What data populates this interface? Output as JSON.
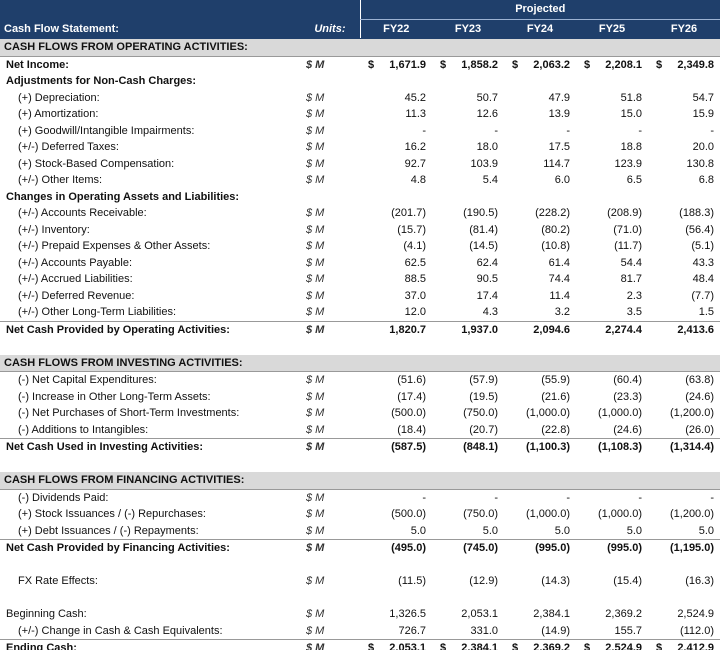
{
  "header": {
    "title": "Cash Flow Statement:",
    "units_label": "Units:",
    "group_label": "Projected",
    "years": [
      "FY22",
      "FY23",
      "FY24",
      "FY25",
      "FY26"
    ]
  },
  "rows": [
    {
      "type": "section",
      "label": "CASH FLOWS FROM OPERATING ACTIVITIES:"
    },
    {
      "type": "bold",
      "label": "Net Income:",
      "units": "$ M",
      "dollar": "$",
      "values": [
        "1,671.9",
        "1,858.2",
        "2,063.2",
        "2,208.1",
        "2,349.8"
      ]
    },
    {
      "type": "subhead",
      "label": "Adjustments for Non-Cash Charges:"
    },
    {
      "type": "item",
      "label": "(+) Depreciation:",
      "units": "$ M",
      "values": [
        "45.2",
        "50.7",
        "47.9",
        "51.8",
        "54.7"
      ]
    },
    {
      "type": "item",
      "label": "(+) Amortization:",
      "units": "$ M",
      "values": [
        "11.3",
        "12.6",
        "13.9",
        "15.0",
        "15.9"
      ]
    },
    {
      "type": "item",
      "label": "(+) Goodwill/Intangible Impairments:",
      "units": "$ M",
      "values": [
        "-",
        "-",
        "-",
        "-",
        "-"
      ]
    },
    {
      "type": "item",
      "label": "(+/-) Deferred Taxes:",
      "units": "$ M",
      "values": [
        "16.2",
        "18.0",
        "17.5",
        "18.8",
        "20.0"
      ]
    },
    {
      "type": "item",
      "label": "(+) Stock-Based Compensation:",
      "units": "$ M",
      "values": [
        "92.7",
        "103.9",
        "114.7",
        "123.9",
        "130.8"
      ]
    },
    {
      "type": "item",
      "label": "(+/-) Other Items:",
      "units": "$ M",
      "values": [
        "4.8",
        "5.4",
        "6.0",
        "6.5",
        "6.8"
      ]
    },
    {
      "type": "subhead",
      "label": "Changes in Operating Assets and Liabilities:"
    },
    {
      "type": "item",
      "label": "(+/-) Accounts Receivable:",
      "units": "$ M",
      "values": [
        "(201.7)",
        "(190.5)",
        "(228.2)",
        "(208.9)",
        "(188.3)"
      ]
    },
    {
      "type": "item",
      "label": "(+/-) Inventory:",
      "units": "$ M",
      "values": [
        "(15.7)",
        "(81.4)",
        "(80.2)",
        "(71.0)",
        "(56.4)"
      ]
    },
    {
      "type": "item",
      "label": "(+/-) Prepaid Expenses & Other Assets:",
      "units": "$ M",
      "values": [
        "(4.1)",
        "(14.5)",
        "(10.8)",
        "(11.7)",
        "(5.1)"
      ]
    },
    {
      "type": "item",
      "label": "(+/-) Accounts Payable:",
      "units": "$ M",
      "values": [
        "62.5",
        "62.4",
        "61.4",
        "54.4",
        "43.3"
      ]
    },
    {
      "type": "item",
      "label": "(+/-) Accrued Liabilities:",
      "units": "$ M",
      "values": [
        "88.5",
        "90.5",
        "74.4",
        "81.7",
        "48.4"
      ]
    },
    {
      "type": "item",
      "label": "(+/-) Deferred Revenue:",
      "units": "$ M",
      "values": [
        "37.0",
        "17.4",
        "11.4",
        "2.3",
        "(7.7)"
      ]
    },
    {
      "type": "item",
      "label": "(+/-) Other Long-Term Liabilities:",
      "units": "$ M",
      "values": [
        "12.0",
        "4.3",
        "3.2",
        "3.5",
        "1.5"
      ]
    },
    {
      "type": "total",
      "label": "Net Cash Provided by Operating Activities:",
      "units": "$ M",
      "values": [
        "1,820.7",
        "1,937.0",
        "2,094.6",
        "2,274.4",
        "2,413.6"
      ]
    },
    {
      "type": "blank"
    },
    {
      "type": "section",
      "label": "CASH FLOWS FROM INVESTING ACTIVITIES:"
    },
    {
      "type": "item",
      "label": "(-) Net Capital Expenditures:",
      "units": "$ M",
      "values": [
        "(51.6)",
        "(57.9)",
        "(55.9)",
        "(60.4)",
        "(63.8)"
      ]
    },
    {
      "type": "item",
      "label": "(-) Increase in Other Long-Term Assets:",
      "units": "$ M",
      "values": [
        "(17.4)",
        "(19.5)",
        "(21.6)",
        "(23.3)",
        "(24.6)"
      ]
    },
    {
      "type": "item",
      "label": "(-) Net Purchases of Short-Term Investments:",
      "units": "$ M",
      "values": [
        "(500.0)",
        "(750.0)",
        "(1,000.0)",
        "(1,000.0)",
        "(1,200.0)"
      ]
    },
    {
      "type": "item",
      "label": "(-) Additions to Intangibles:",
      "units": "$ M",
      "values": [
        "(18.4)",
        "(20.7)",
        "(22.8)",
        "(24.6)",
        "(26.0)"
      ]
    },
    {
      "type": "total",
      "label": "Net Cash Used in Investing Activities:",
      "units": "$ M",
      "values": [
        "(587.5)",
        "(848.1)",
        "(1,100.3)",
        "(1,108.3)",
        "(1,314.4)"
      ]
    },
    {
      "type": "blank"
    },
    {
      "type": "section",
      "label": "CASH FLOWS FROM FINANCING ACTIVITIES:"
    },
    {
      "type": "item",
      "label": "(-) Dividends Paid:",
      "units": "$ M",
      "values": [
        "-",
        "-",
        "-",
        "-",
        "-"
      ]
    },
    {
      "type": "item",
      "label": "(+) Stock Issuances / (-) Repurchases:",
      "units": "$ M",
      "values": [
        "(500.0)",
        "(750.0)",
        "(1,000.0)",
        "(1,000.0)",
        "(1,200.0)"
      ]
    },
    {
      "type": "item",
      "label": "(+) Debt Issuances / (-) Repayments:",
      "units": "$ M",
      "values": [
        "5.0",
        "5.0",
        "5.0",
        "5.0",
        "5.0"
      ]
    },
    {
      "type": "total",
      "label": "Net Cash Provided by Financing Activities:",
      "units": "$ M",
      "values": [
        "(495.0)",
        "(745.0)",
        "(995.0)",
        "(995.0)",
        "(1,195.0)"
      ]
    },
    {
      "type": "blank"
    },
    {
      "type": "item",
      "label": "FX Rate Effects:",
      "units": "$ M",
      "values": [
        "(11.5)",
        "(12.9)",
        "(14.3)",
        "(15.4)",
        "(16.3)"
      ]
    },
    {
      "type": "blank"
    },
    {
      "type": "plain",
      "label": "Beginning Cash:",
      "units": "$ M",
      "values": [
        "1,326.5",
        "2,053.1",
        "2,384.1",
        "2,369.2",
        "2,524.9"
      ]
    },
    {
      "type": "item",
      "label": "(+/-) Change in Cash & Cash Equivalents:",
      "units": "$ M",
      "values": [
        "726.7",
        "331.0",
        "(14.9)",
        "155.7",
        "(112.0)"
      ]
    },
    {
      "type": "total",
      "label": "Ending Cash:",
      "units": "$ M",
      "dollar": "$",
      "values": [
        "2,053.1",
        "2,384.1",
        "2,369.2",
        "2,524.9",
        "2,412.9"
      ]
    }
  ],
  "colors": {
    "header_bg": "#1f3f6b",
    "section_bg": "#d9d9d9"
  }
}
